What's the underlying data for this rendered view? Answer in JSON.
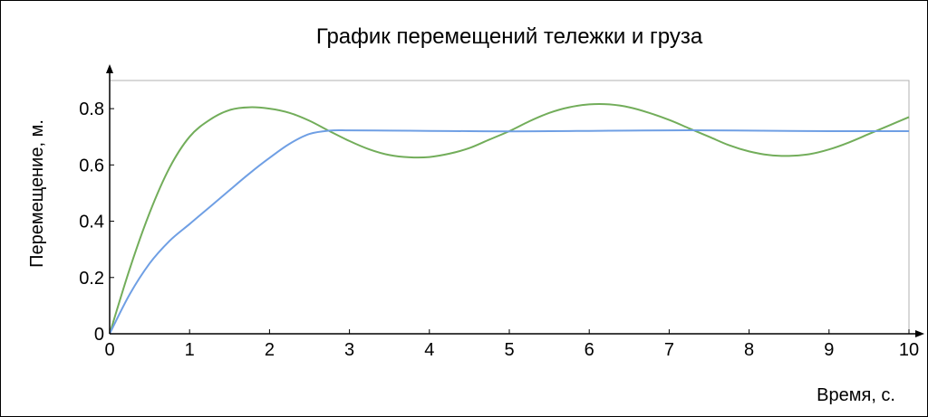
{
  "chart_data": {
    "type": "line",
    "title": "График перемещений тележки и груза",
    "xlabel": "Время, с.",
    "ylabel": "Перемещение, м.",
    "xlim": [
      0,
      10
    ],
    "ylim": [
      0,
      0.9
    ],
    "x_ticks": [
      "0",
      "1",
      "2",
      "3",
      "4",
      "5",
      "6",
      "7",
      "8",
      "9",
      "10"
    ],
    "y_ticks": [
      "0",
      "0.2",
      "0.4",
      "0.6",
      "0.8"
    ],
    "grid": false,
    "colors": {
      "cart": "#6f9fe4",
      "load": "#72ad5a"
    },
    "series": [
      {
        "color": "#72ad5a",
        "x": [
          0,
          0.25,
          0.5,
          0.75,
          1.0,
          1.25,
          1.5,
          1.75,
          2.0,
          2.25,
          2.5,
          2.75,
          3.0,
          3.25,
          3.5,
          3.75,
          4.0,
          4.25,
          4.5,
          4.75,
          5.0,
          5.25,
          5.5,
          5.75,
          6.0,
          6.25,
          6.5,
          6.75,
          7.0,
          7.25,
          7.5,
          7.75,
          8.0,
          8.25,
          8.5,
          8.75,
          9.0,
          9.25,
          9.5,
          9.75,
          10.0
        ],
        "y": [
          0,
          0.23,
          0.43,
          0.59,
          0.7,
          0.76,
          0.795,
          0.805,
          0.8,
          0.785,
          0.757,
          0.72,
          0.685,
          0.655,
          0.635,
          0.627,
          0.628,
          0.64,
          0.66,
          0.69,
          0.72,
          0.755,
          0.785,
          0.805,
          0.815,
          0.815,
          0.805,
          0.785,
          0.76,
          0.73,
          0.7,
          0.67,
          0.648,
          0.635,
          0.632,
          0.638,
          0.655,
          0.68,
          0.71,
          0.74,
          0.77
        ]
      },
      {
        "color": "#6f9fe4",
        "x": [
          0,
          0.25,
          0.5,
          0.75,
          1.0,
          1.25,
          1.5,
          1.75,
          2.0,
          2.25,
          2.5,
          2.75,
          3.0,
          3.5,
          4.0,
          4.5,
          5.0,
          5.5,
          6.0,
          6.5,
          7.0,
          7.5,
          8.0,
          8.5,
          9.0,
          9.5,
          10.0
        ],
        "y": [
          0,
          0.14,
          0.25,
          0.33,
          0.39,
          0.45,
          0.51,
          0.57,
          0.625,
          0.675,
          0.71,
          0.722,
          0.723,
          0.722,
          0.721,
          0.72,
          0.719,
          0.72,
          0.721,
          0.722,
          0.723,
          0.723,
          0.722,
          0.721,
          0.72,
          0.72,
          0.72
        ]
      }
    ]
  }
}
